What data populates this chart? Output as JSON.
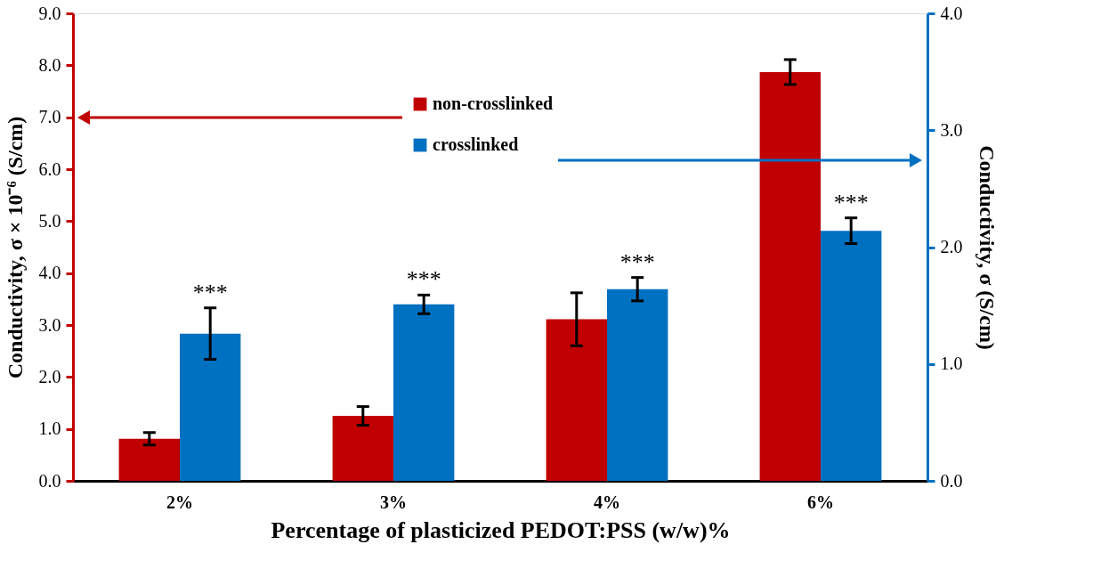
{
  "chart_data": {
    "type": "bar",
    "xlabel": "Percentage of plasticized PEDOT:PSS (w/w)%",
    "ylabel": "Conductivity, σ × 10⁻⁶ (S/cm)",
    "y2label": "Conductivity, σ  (S/cm)",
    "categories": [
      "2%",
      "3%",
      "4%",
      "6%"
    ],
    "series": [
      {
        "name": "non-crosslinked",
        "color": "#c00000",
        "values": [
          0.81,
          1.25,
          3.11,
          7.87
        ],
        "errors": [
          0.12,
          0.18,
          0.51,
          0.24
        ]
      },
      {
        "name": "crosslinked",
        "color": "#0070c0",
        "axis": "y2",
        "values": [
          1.26,
          1.51,
          1.64,
          2.14
        ],
        "errors": [
          0.22,
          0.08,
          0.1,
          0.11
        ]
      }
    ],
    "ylim": [
      0,
      9
    ],
    "yticks": [
      {
        "value": 0,
        "label": "0.0"
      },
      {
        "value": 1,
        "label": "1.0"
      },
      {
        "value": 2,
        "label": "2.0"
      },
      {
        "value": 3,
        "label": "3.0"
      },
      {
        "value": 4,
        "label": "4.0"
      },
      {
        "value": 5,
        "label": "5.0"
      },
      {
        "value": 6,
        "label": "6.0"
      },
      {
        "value": 7,
        "label": "7.0"
      },
      {
        "value": 8,
        "label": "8.0"
      },
      {
        "value": 9,
        "label": "9.0"
      }
    ],
    "y2lim": [
      0,
      4
    ],
    "y2ticks": [
      {
        "value": 0,
        "label": "0.0"
      },
      {
        "value": 1,
        "label": "1.0"
      },
      {
        "value": 2,
        "label": "2.0"
      },
      {
        "value": 3,
        "label": "3.0"
      },
      {
        "value": 4,
        "label": "4.0"
      }
    ],
    "annotations": [
      "***",
      "***",
      "***",
      "***"
    ],
    "legend": "top",
    "grid": false
  }
}
